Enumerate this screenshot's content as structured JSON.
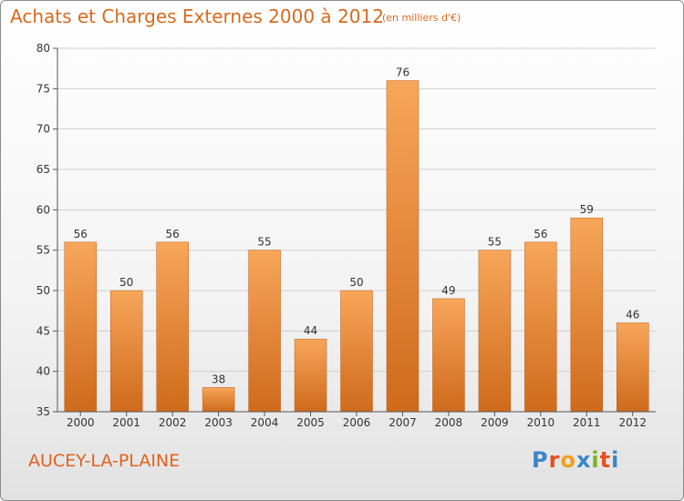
{
  "header": {
    "title": "Achats et Charges Externes 2000 à 2012",
    "unit": "(en milliers d'€)"
  },
  "footer": {
    "commune": "AUCEY-LA-PLAINE",
    "logo_letters": [
      "P",
      "r",
      "o",
      "x",
      "i",
      "t",
      "i"
    ],
    "logo_colors": [
      "#3a86c8",
      "#e8501e",
      "#f0a020",
      "#3a86c8",
      "#7ab51d",
      "#e8501e",
      "#3a86c8"
    ]
  },
  "colors": {
    "bar_top": "#f7a65a",
    "bar_bottom": "#cf6a1b",
    "axis": "#555555",
    "grid": "#d0d0d0",
    "text": "#333333"
  },
  "chart_data": {
    "type": "bar",
    "title": "Achats et Charges Externes 2000 à 2012",
    "categories": [
      "2000",
      "2001",
      "2002",
      "2003",
      "2004",
      "2005",
      "2006",
      "2007",
      "2008",
      "2009",
      "2010",
      "2011",
      "2012"
    ],
    "values": [
      56,
      50,
      56,
      38,
      55,
      44,
      50,
      76,
      49,
      55,
      56,
      59,
      46
    ],
    "ylim": [
      35,
      80
    ],
    "yticks": [
      35,
      40,
      45,
      50,
      55,
      60,
      65,
      70,
      75,
      80
    ],
    "grid": true,
    "data_labels": true
  }
}
